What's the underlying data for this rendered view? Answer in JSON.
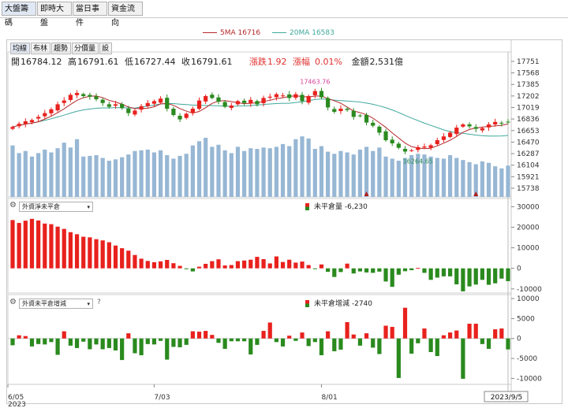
{
  "tabs": [
    "大盤籌碼",
    "即時大盤",
    "當日事件",
    "資金流向"
  ],
  "toolbar_buttons": [
    "均線",
    "布林",
    "趨勢",
    "分價量",
    "設"
  ],
  "legend": {
    "ma5": "5MA 16716",
    "ma20": "20MA 16583"
  },
  "quote": {
    "open_label": "開",
    "open": "16784.12",
    "high_label": "高",
    "high": "16791.61",
    "low_label": "低",
    "low": "16727.44",
    "close_label": "收",
    "close": "16791.61",
    "change_label": "漲跌",
    "change": "1.92",
    "pct_label": "漲幅",
    "pct": "0.01%",
    "amount_label": "金額",
    "amount": "2,531億"
  },
  "panel2": {
    "selector": "外資淨未平倉",
    "series_label": "未平倉量 -6,230"
  },
  "panel3": {
    "selector": "外資未平倉增減",
    "help": "?",
    "series_label": "未平倉增減 -2740"
  },
  "colors": {
    "up": "#e8211d",
    "down": "#2a8a1e",
    "volume": "#97b7d4",
    "ma5": "#b5282a",
    "ma20": "#3fa89c",
    "peak_label": "#d6409a",
    "low_label": "#2e8b57"
  },
  "chart_data": [
    {
      "type": "candlestick",
      "title": "",
      "ylim": [
        15600,
        17900
      ],
      "yticks": [
        17751,
        17568,
        17385,
        17202,
        17019,
        16836,
        16653,
        16470,
        16287,
        16104,
        15921,
        15738
      ],
      "ytick_labels": [
        "17751",
        "17568",
        "17385",
        "17202",
        "17019",
        "16836",
        "16653",
        "16470",
        "16287",
        "16104",
        "15921",
        "15738"
      ],
      "x_labels": [
        {
          "index": 0,
          "text": "6/05"
        },
        {
          "index": 0,
          "text": "2023"
        },
        {
          "index": 22,
          "text": "7/03"
        },
        {
          "index": 48,
          "text": "8/01"
        },
        {
          "index": 77,
          "text": "2023/9/5"
        }
      ],
      "annotations": [
        {
          "index": 47,
          "text": "17463.76",
          "kind": "high"
        },
        {
          "index": 63,
          "text": "16264.65",
          "kind": "low"
        }
      ],
      "markers": [
        {
          "index": 55
        },
        {
          "index": 72
        }
      ],
      "ma5": {
        "name": "5MA",
        "last": 16716
      },
      "ma20": {
        "name": "20MA",
        "last": 16583
      },
      "closes": [
        16710,
        16760,
        16800,
        16820,
        16870,
        16930,
        16990,
        17070,
        17130,
        17220,
        17250,
        17200,
        17190,
        17150,
        17090,
        17030,
        17070,
        17010,
        16930,
        16970,
        17040,
        17090,
        17120,
        17160,
        17000,
        16900,
        16830,
        16920,
        17000,
        17130,
        17200,
        17170,
        17110,
        17030,
        17050,
        17120,
        17090,
        17140,
        17070,
        17170,
        17190,
        17230,
        17210,
        17170,
        17230,
        17120,
        17200,
        17280,
        17180,
        17020,
        16950,
        17000,
        16980,
        16870,
        16890,
        16780,
        16730,
        16620,
        16500,
        16450,
        16380,
        16320,
        16340,
        16390,
        16400,
        16420,
        16500,
        16560,
        16620,
        16700,
        16750,
        16720,
        16680,
        16690,
        16750,
        16790,
        16770,
        16790
      ],
      "volume_level": [
        0.74,
        0.63,
        0.66,
        0.58,
        0.63,
        0.68,
        0.64,
        0.7,
        0.78,
        0.71,
        0.83,
        0.58,
        0.59,
        0.6,
        0.56,
        0.52,
        0.54,
        0.57,
        0.61,
        0.66,
        0.67,
        0.68,
        0.64,
        0.67,
        0.6,
        0.55,
        0.59,
        0.62,
        0.74,
        0.8,
        0.85,
        0.72,
        0.75,
        0.67,
        0.63,
        0.72,
        0.66,
        0.7,
        0.69,
        0.71,
        0.7,
        0.72,
        0.76,
        0.73,
        0.83,
        0.87,
        0.84,
        0.69,
        0.73,
        0.65,
        0.62,
        0.66,
        0.64,
        0.61,
        0.68,
        0.72,
        0.66,
        0.71,
        0.58,
        0.55,
        0.52,
        0.56,
        0.6,
        0.62,
        0.61,
        0.58,
        0.56,
        0.55,
        0.6,
        0.56,
        0.53,
        0.5,
        0.47,
        0.51,
        0.49,
        0.44,
        0.41,
        0.45
      ]
    },
    {
      "type": "bar",
      "title": "外資淨未平倉",
      "series_name": "未平倉量",
      "ylim": [
        -12000,
        34000
      ],
      "yticks": [
        30000,
        20000,
        10000,
        0,
        -10000
      ],
      "ytick_labels": [
        "30000",
        "20000",
        "10000",
        "0",
        "-10000"
      ],
      "values": [
        23500,
        22100,
        23200,
        24100,
        23300,
        21800,
        21500,
        20300,
        19200,
        17600,
        16600,
        15400,
        15100,
        14200,
        13600,
        12700,
        11100,
        9800,
        8600,
        6500,
        4700,
        3600,
        3000,
        3400,
        4100,
        2500,
        1200,
        -400,
        -1500,
        800,
        2200,
        3500,
        4400,
        1400,
        1600,
        3500,
        3800,
        4200,
        5600,
        4500,
        2400,
        5800,
        3100,
        4200,
        2800,
        3300,
        1600,
        -200,
        1900,
        -1700,
        -4200,
        -1800,
        2300,
        -2500,
        -1500,
        -2000,
        -2200,
        -1600,
        -6400,
        -9000,
        -3100,
        -1400,
        -900,
        200,
        -2200,
        -5600,
        -4500,
        -3900,
        -3900,
        -7800,
        -11200,
        -8800,
        -7900,
        -5600,
        -8000,
        -7300,
        -5000,
        -6230
      ]
    },
    {
      "type": "bar",
      "title": "外資未平倉增減",
      "series_name": "未平倉增減",
      "ylim": [
        -11500,
        11000
      ],
      "yticks": [
        10000,
        5000,
        0,
        -5000,
        -10000
      ],
      "ytick_labels": [
        "10000",
        "5000",
        "0",
        "-5000",
        "-10000"
      ],
      "values": [
        -1700,
        800,
        600,
        -2000,
        -1400,
        -1500,
        -900,
        -4100,
        1800,
        -1800,
        -2400,
        -800,
        -2700,
        -1500,
        -2700,
        -2400,
        -3000,
        -5400,
        1300,
        -3700,
        -4200,
        -1400,
        -1500,
        -600,
        -5300,
        -2100,
        -2200,
        -1600,
        1800,
        1700,
        1900,
        900,
        -1100,
        -2600,
        -700,
        -700,
        -700,
        -4000,
        -1600,
        1900,
        4000,
        -900,
        -2000,
        700,
        -600,
        1500,
        -1900,
        -900,
        -4200,
        1800,
        -3200,
        -2800,
        4100,
        1000,
        -1800,
        1300,
        -2300,
        -3900,
        3200,
        2900,
        -9900,
        7700,
        -3800,
        -1200,
        2500,
        -3400,
        -4400,
        800,
        1500,
        2000,
        -10100,
        3700,
        3700,
        -1400,
        -2600,
        2300,
        2500,
        -2740
      ]
    }
  ]
}
